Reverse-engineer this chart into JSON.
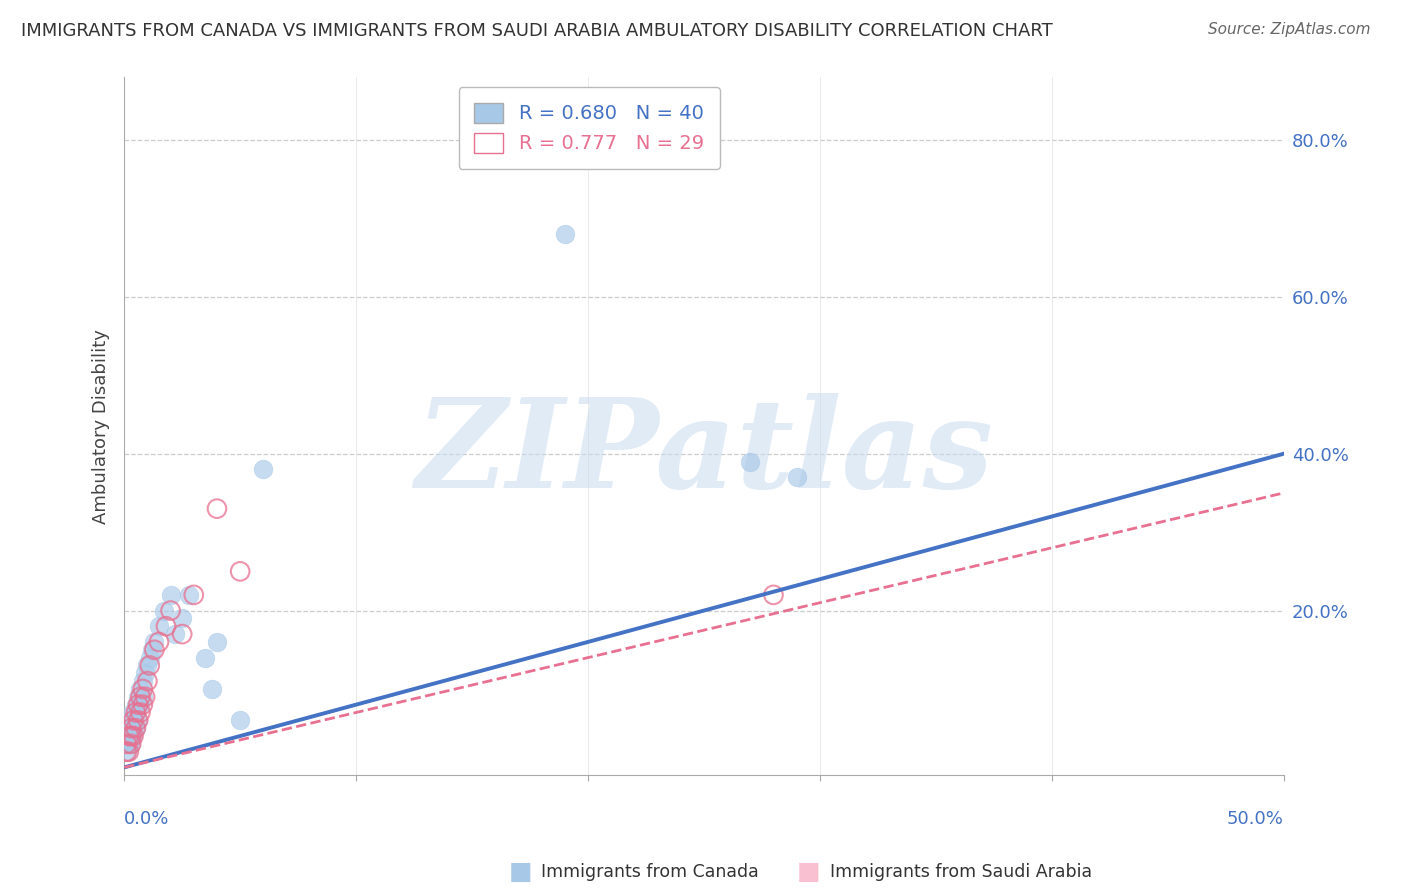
{
  "title": "IMMIGRANTS FROM CANADA VS IMMIGRANTS FROM SAUDI ARABIA AMBULATORY DISABILITY CORRELATION CHART",
  "source": "Source: ZipAtlas.com",
  "ylabel": "Ambulatory Disability",
  "xlim": [
    0.0,
    0.5
  ],
  "ylim": [
    -0.01,
    0.88
  ],
  "legend_canada": "R = 0.680   N = 40",
  "legend_saudi": "R = 0.777   N = 29",
  "canada_color": "#A8C8E8",
  "saudi_color_face": "#F8C0D0",
  "saudi_color_edge": "#E87090",
  "canada_line_color": "#4472C4",
  "saudi_line_color": "#E87090",
  "canada_scatter_x": [
    0.001,
    0.001,
    0.002,
    0.002,
    0.002,
    0.003,
    0.003,
    0.003,
    0.003,
    0.004,
    0.004,
    0.004,
    0.005,
    0.005,
    0.005,
    0.006,
    0.006,
    0.007,
    0.007,
    0.008,
    0.008,
    0.009,
    0.01,
    0.011,
    0.012,
    0.013,
    0.015,
    0.017,
    0.02,
    0.022,
    0.025,
    0.028,
    0.035,
    0.038,
    0.04,
    0.05,
    0.06,
    0.19,
    0.27,
    0.29
  ],
  "canada_scatter_y": [
    0.02,
    0.03,
    0.03,
    0.04,
    0.05,
    0.03,
    0.04,
    0.05,
    0.06,
    0.04,
    0.05,
    0.07,
    0.05,
    0.07,
    0.08,
    0.06,
    0.09,
    0.08,
    0.1,
    0.09,
    0.11,
    0.12,
    0.13,
    0.14,
    0.15,
    0.16,
    0.18,
    0.2,
    0.22,
    0.17,
    0.19,
    0.22,
    0.14,
    0.1,
    0.16,
    0.06,
    0.38,
    0.68,
    0.39,
    0.37
  ],
  "saudi_scatter_x": [
    0.001,
    0.001,
    0.002,
    0.002,
    0.003,
    0.003,
    0.003,
    0.004,
    0.004,
    0.005,
    0.005,
    0.006,
    0.006,
    0.007,
    0.007,
    0.008,
    0.008,
    0.009,
    0.01,
    0.011,
    0.013,
    0.015,
    0.018,
    0.02,
    0.025,
    0.03,
    0.04,
    0.05,
    0.28
  ],
  "saudi_scatter_y": [
    0.02,
    0.03,
    0.02,
    0.04,
    0.03,
    0.04,
    0.05,
    0.04,
    0.06,
    0.05,
    0.07,
    0.06,
    0.08,
    0.07,
    0.09,
    0.08,
    0.1,
    0.09,
    0.11,
    0.13,
    0.15,
    0.16,
    0.18,
    0.2,
    0.17,
    0.22,
    0.33,
    0.25,
    0.22
  ],
  "canada_line_x": [
    0.0,
    0.5
  ],
  "canada_line_y": [
    0.0,
    0.4
  ],
  "saudi_line_x": [
    0.0,
    0.5
  ],
  "saudi_line_y": [
    0.0,
    0.35
  ],
  "watermark_text": "ZIPatlas",
  "watermark_color": "#C8DCF0",
  "background_color": "#FFFFFF",
  "grid_color_h": "#CCCCCC",
  "grid_color_v": "#E0E0E0",
  "ytick_positions": [
    0.2,
    0.4,
    0.6,
    0.8
  ],
  "ytick_labels": [
    "20.0%",
    "40.0%",
    "60.0%",
    "80.0%"
  ],
  "xtick_positions": [
    0.1,
    0.2,
    0.3,
    0.4,
    0.5
  ],
  "marker_size": 180
}
